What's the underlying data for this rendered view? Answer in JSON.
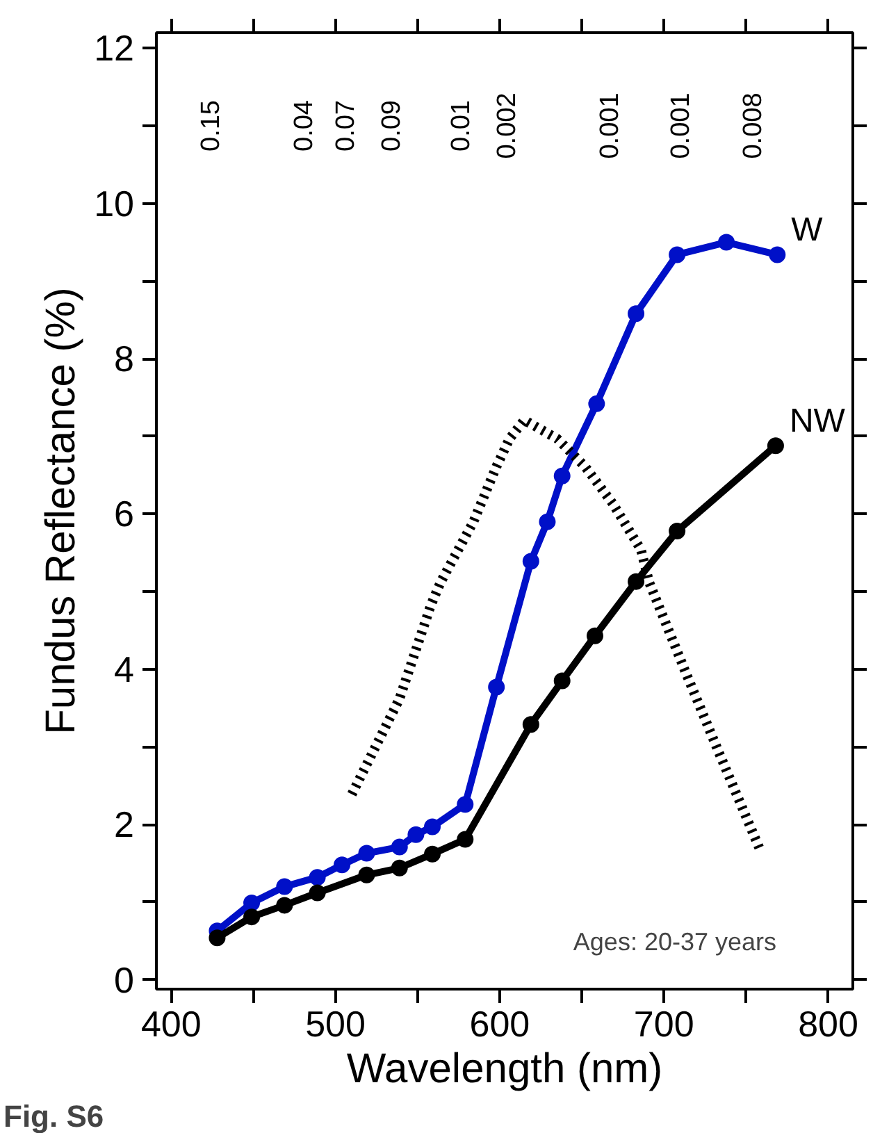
{
  "chart_data": {
    "type": "line",
    "xlabel": "Wavelength (nm)",
    "ylabel": "Fundus Reflectance (%)",
    "xlim": [
      391,
      815
    ],
    "ylim": [
      -0.12,
      12.2
    ],
    "xticks": [
      400,
      {
        "value": 450,
        "label": null
      },
      500,
      {
        "value": 550,
        "label": null
      },
      600,
      {
        "value": 650,
        "label": null
      },
      700,
      {
        "value": 750,
        "label": null
      },
      800
    ],
    "yticks": [
      0,
      {
        "value": 1,
        "label": null
      },
      2,
      {
        "value": 3,
        "label": null
      },
      4,
      {
        "value": 5,
        "label": null
      },
      6,
      {
        "value": 7,
        "label": null
      },
      8,
      {
        "value": 9,
        "label": null
      },
      10,
      {
        "value": 11,
        "label": null
      },
      12
    ],
    "grid": false,
    "legend": "right",
    "marker": "circle",
    "line_style": "solid",
    "series": [
      {
        "name": "W",
        "color": "#0010c8",
        "x": [
          428,
          449,
          469,
          489,
          504,
          519,
          539,
          549,
          559,
          579,
          598,
          619,
          629,
          638,
          659,
          683,
          708,
          738,
          769
        ],
        "values": [
          0.63,
          0.99,
          1.2,
          1.32,
          1.48,
          1.63,
          1.71,
          1.87,
          1.97,
          2.26,
          3.77,
          5.39,
          5.9,
          6.49,
          7.42,
          8.58,
          9.34,
          9.5,
          9.34
        ]
      },
      {
        "name": "NW",
        "color": "#000000",
        "x": [
          428,
          449,
          469,
          489,
          519,
          539,
          559,
          579,
          619,
          638,
          658,
          683,
          708,
          768
        ],
        "values": [
          0.54,
          0.81,
          0.96,
          1.12,
          1.35,
          1.44,
          1.62,
          1.81,
          3.29,
          3.85,
          4.43,
          5.13,
          5.78,
          6.88
        ]
      },
      {
        "type": "line",
        "color": "#000000",
        "marker": "none",
        "line_style": "dotted",
        "x": [
          510,
          539,
          558,
          564,
          584,
          598,
          606,
          615,
          635,
          652,
          669,
          686,
          691,
          714,
          734,
          759
        ],
        "values": [
          2.39,
          3.62,
          4.82,
          5.12,
          5.9,
          6.61,
          6.97,
          7.21,
          6.97,
          6.61,
          6.13,
          5.54,
          5.12,
          3.92,
          2.9,
          1.65
        ]
      }
    ],
    "annotations": [
      "0.15",
      "0.04",
      "0.07",
      "0.09",
      "0.01",
      "0.002",
      "0.001",
      "0.001",
      "0.008",
      "Ages: 20-37 years",
      "Fig. S6"
    ]
  }
}
